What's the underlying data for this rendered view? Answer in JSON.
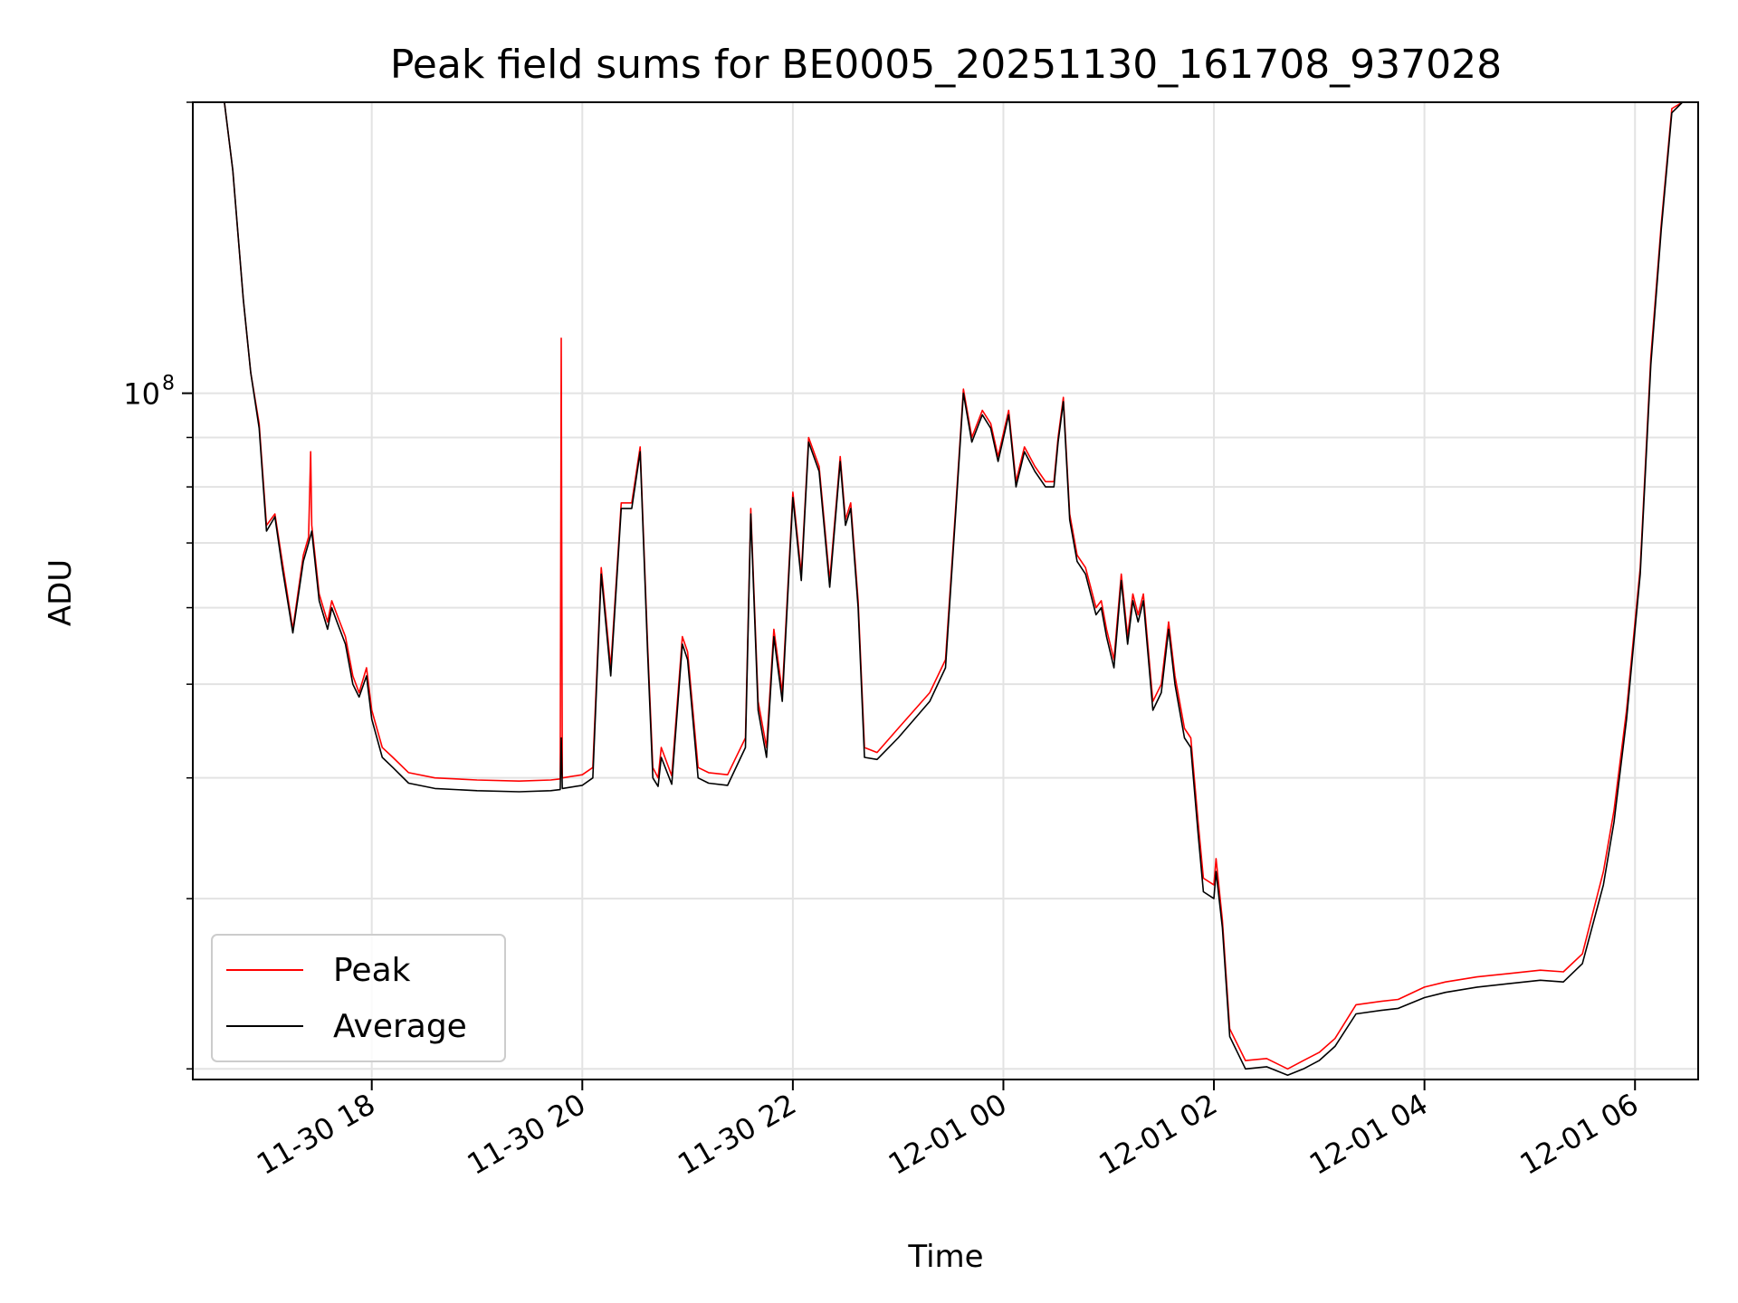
{
  "chart_data": {
    "type": "line",
    "title": "Peak field sums for BE0005_20251130_161708_937028",
    "xlabel": "Time",
    "ylabel": "ADU",
    "yscale": "log",
    "xlim_hours": [
      -1.7,
      12.6
    ],
    "ylim": [
      19500000,
      200000000
    ],
    "grid": true,
    "x_ticks": [
      {
        "hour": 0,
        "label": "11-30 18"
      },
      {
        "hour": 2,
        "label": "11-30 20"
      },
      {
        "hour": 4,
        "label": "11-30 22"
      },
      {
        "hour": 6,
        "label": "12-01 00"
      },
      {
        "hour": 8,
        "label": "12-01 02"
      },
      {
        "hour": 10,
        "label": "12-01 04"
      },
      {
        "hour": 12,
        "label": "12-01 06"
      }
    ],
    "y_major_ticks": [
      {
        "value": 100000000,
        "base": "10",
        "exp": "8"
      }
    ],
    "y_minor_ticks": [
      20000000,
      30000000,
      40000000,
      50000000,
      60000000,
      70000000,
      80000000,
      90000000,
      200000000
    ],
    "legend_position": "lower-left",
    "series": [
      {
        "name": "Peak",
        "color": "#ff0000",
        "points": [
          [
            -1.7,
            200000000
          ],
          [
            -1.4,
            200000000
          ],
          [
            -1.32,
            170000000
          ],
          [
            -1.22,
            125000000
          ],
          [
            -1.15,
            105000000
          ],
          [
            -1.07,
            93000000
          ],
          [
            -1.0,
            73000000
          ],
          [
            -0.92,
            75000000
          ],
          [
            -0.85,
            67000000
          ],
          [
            -0.75,
            57000000
          ],
          [
            -0.65,
            68000000
          ],
          [
            -0.6,
            71000000
          ],
          [
            -0.58,
            87000000
          ],
          [
            -0.57,
            73000000
          ],
          [
            -0.5,
            62000000
          ],
          [
            -0.42,
            58000000
          ],
          [
            -0.38,
            61000000
          ],
          [
            -0.33,
            59000000
          ],
          [
            -0.25,
            56000000
          ],
          [
            -0.18,
            51000000
          ],
          [
            -0.12,
            49000000
          ],
          [
            -0.05,
            52000000
          ],
          [
            0.0,
            47000000
          ],
          [
            0.1,
            43000000
          ],
          [
            0.2,
            42000000
          ],
          [
            0.35,
            40500000
          ],
          [
            0.6,
            40000000
          ],
          [
            1.0,
            39800000
          ],
          [
            1.4,
            39700000
          ],
          [
            1.7,
            39800000
          ],
          [
            1.79,
            39900000
          ],
          [
            1.8,
            114000000
          ],
          [
            1.81,
            40000000
          ],
          [
            2.0,
            40300000
          ],
          [
            2.1,
            41000000
          ],
          [
            2.18,
            66000000
          ],
          [
            2.27,
            52000000
          ],
          [
            2.37,
            77000000
          ],
          [
            2.47,
            77000000
          ],
          [
            2.55,
            88000000
          ],
          [
            2.62,
            55000000
          ],
          [
            2.67,
            41000000
          ],
          [
            2.72,
            40000000
          ],
          [
            2.75,
            43000000
          ],
          [
            2.85,
            40200000
          ],
          [
            2.95,
            56000000
          ],
          [
            3.0,
            54000000
          ],
          [
            3.1,
            41000000
          ],
          [
            3.2,
            40500000
          ],
          [
            3.38,
            40300000
          ],
          [
            3.55,
            44000000
          ],
          [
            3.6,
            76000000
          ],
          [
            3.67,
            48000000
          ],
          [
            3.75,
            43000000
          ],
          [
            3.82,
            57000000
          ],
          [
            3.9,
            49000000
          ],
          [
            4.0,
            79000000
          ],
          [
            4.08,
            65000000
          ],
          [
            4.15,
            90000000
          ],
          [
            4.25,
            84000000
          ],
          [
            4.35,
            64000000
          ],
          [
            4.45,
            86000000
          ],
          [
            4.5,
            74000000
          ],
          [
            4.55,
            77000000
          ],
          [
            4.62,
            61000000
          ],
          [
            4.68,
            43000000
          ],
          [
            4.8,
            42500000
          ],
          [
            5.0,
            45000000
          ],
          [
            5.3,
            49000000
          ],
          [
            5.45,
            53000000
          ],
          [
            5.55,
            77000000
          ],
          [
            5.62,
            101000000
          ],
          [
            5.7,
            90000000
          ],
          [
            5.8,
            96000000
          ],
          [
            5.88,
            93000000
          ],
          [
            5.95,
            86000000
          ],
          [
            6.05,
            96000000
          ],
          [
            6.12,
            81000000
          ],
          [
            6.2,
            88000000
          ],
          [
            6.3,
            84000000
          ],
          [
            6.4,
            81000000
          ],
          [
            6.48,
            81000000
          ],
          [
            6.52,
            90000000
          ],
          [
            6.57,
            99000000
          ],
          [
            6.63,
            75000000
          ],
          [
            6.7,
            68000000
          ],
          [
            6.78,
            66000000
          ],
          [
            6.88,
            60000000
          ],
          [
            6.93,
            61000000
          ],
          [
            6.98,
            57000000
          ],
          [
            7.05,
            53000000
          ],
          [
            7.12,
            65000000
          ],
          [
            7.18,
            56000000
          ],
          [
            7.23,
            62000000
          ],
          [
            7.28,
            59000000
          ],
          [
            7.33,
            62000000
          ],
          [
            7.42,
            48000000
          ],
          [
            7.5,
            50000000
          ],
          [
            7.57,
            58000000
          ],
          [
            7.63,
            51000000
          ],
          [
            7.72,
            45000000
          ],
          [
            7.78,
            44000000
          ],
          [
            7.85,
            36000000
          ],
          [
            7.9,
            31500000
          ],
          [
            8.0,
            31000000
          ],
          [
            8.02,
            33000000
          ],
          [
            8.08,
            28500000
          ],
          [
            8.15,
            22000000
          ],
          [
            8.3,
            20400000
          ],
          [
            8.5,
            20500000
          ],
          [
            8.7,
            20000000
          ],
          [
            8.85,
            20400000
          ],
          [
            9.0,
            20800000
          ],
          [
            9.15,
            21500000
          ],
          [
            9.35,
            23300000
          ],
          [
            9.6,
            23500000
          ],
          [
            9.75,
            23600000
          ],
          [
            10.0,
            24300000
          ],
          [
            10.2,
            24600000
          ],
          [
            10.5,
            24900000
          ],
          [
            10.8,
            25100000
          ],
          [
            11.1,
            25300000
          ],
          [
            11.32,
            25200000
          ],
          [
            11.5,
            26300000
          ],
          [
            11.7,
            32000000
          ],
          [
            11.8,
            37000000
          ],
          [
            11.92,
            47000000
          ],
          [
            12.05,
            66000000
          ],
          [
            12.15,
            109000000
          ],
          [
            12.25,
            150000000
          ],
          [
            12.35,
            197000000
          ],
          [
            12.45,
            200000000
          ],
          [
            12.6,
            200000000
          ]
        ]
      },
      {
        "name": "Average",
        "color": "#000000",
        "points": [
          [
            -1.7,
            200000000
          ],
          [
            -1.4,
            200000000
          ],
          [
            -1.32,
            170000000
          ],
          [
            -1.22,
            125000000
          ],
          [
            -1.15,
            105000000
          ],
          [
            -1.07,
            92000000
          ],
          [
            -1.0,
            72000000
          ],
          [
            -0.92,
            74500000
          ],
          [
            -0.85,
            66000000
          ],
          [
            -0.75,
            56500000
          ],
          [
            -0.65,
            67000000
          ],
          [
            -0.6,
            70000000
          ],
          [
            -0.57,
            72000000
          ],
          [
            -0.5,
            61000000
          ],
          [
            -0.42,
            57000000
          ],
          [
            -0.38,
            60000000
          ],
          [
            -0.33,
            58000000
          ],
          [
            -0.25,
            55000000
          ],
          [
            -0.18,
            50000000
          ],
          [
            -0.12,
            48500000
          ],
          [
            -0.05,
            51000000
          ],
          [
            0.0,
            46000000
          ],
          [
            0.1,
            42000000
          ],
          [
            0.2,
            41000000
          ],
          [
            0.35,
            39500000
          ],
          [
            0.6,
            39000000
          ],
          [
            1.0,
            38800000
          ],
          [
            1.4,
            38700000
          ],
          [
            1.7,
            38800000
          ],
          [
            1.79,
            38900000
          ],
          [
            1.8,
            44000000
          ],
          [
            1.81,
            39000000
          ],
          [
            2.0,
            39300000
          ],
          [
            2.1,
            40000000
          ],
          [
            2.18,
            65000000
          ],
          [
            2.27,
            51000000
          ],
          [
            2.37,
            76000000
          ],
          [
            2.47,
            76000000
          ],
          [
            2.55,
            87000000
          ],
          [
            2.62,
            54000000
          ],
          [
            2.67,
            40000000
          ],
          [
            2.72,
            39200000
          ],
          [
            2.75,
            42000000
          ],
          [
            2.85,
            39400000
          ],
          [
            2.95,
            55000000
          ],
          [
            3.0,
            53000000
          ],
          [
            3.1,
            40000000
          ],
          [
            3.2,
            39500000
          ],
          [
            3.38,
            39300000
          ],
          [
            3.55,
            43000000
          ],
          [
            3.6,
            75000000
          ],
          [
            3.67,
            47000000
          ],
          [
            3.75,
            42000000
          ],
          [
            3.82,
            56000000
          ],
          [
            3.9,
            48000000
          ],
          [
            4.0,
            78000000
          ],
          [
            4.08,
            64000000
          ],
          [
            4.15,
            89000000
          ],
          [
            4.25,
            83000000
          ],
          [
            4.35,
            63000000
          ],
          [
            4.45,
            85000000
          ],
          [
            4.5,
            73000000
          ],
          [
            4.55,
            76000000
          ],
          [
            4.62,
            60000000
          ],
          [
            4.68,
            42000000
          ],
          [
            4.8,
            41800000
          ],
          [
            5.0,
            44000000
          ],
          [
            5.3,
            48000000
          ],
          [
            5.45,
            52000000
          ],
          [
            5.55,
            76000000
          ],
          [
            5.62,
            100000000
          ],
          [
            5.7,
            89000000
          ],
          [
            5.8,
            95000000
          ],
          [
            5.88,
            92000000
          ],
          [
            5.95,
            85000000
          ],
          [
            6.05,
            95000000
          ],
          [
            6.12,
            80000000
          ],
          [
            6.2,
            87000000
          ],
          [
            6.3,
            83000000
          ],
          [
            6.4,
            80000000
          ],
          [
            6.48,
            80000000
          ],
          [
            6.52,
            89000000
          ],
          [
            6.57,
            98000000
          ],
          [
            6.63,
            74000000
          ],
          [
            6.7,
            67000000
          ],
          [
            6.78,
            65000000
          ],
          [
            6.88,
            59000000
          ],
          [
            6.93,
            60000000
          ],
          [
            6.98,
            56000000
          ],
          [
            7.05,
            52000000
          ],
          [
            7.12,
            64000000
          ],
          [
            7.18,
            55000000
          ],
          [
            7.23,
            61000000
          ],
          [
            7.28,
            58000000
          ],
          [
            7.33,
            61000000
          ],
          [
            7.42,
            47000000
          ],
          [
            7.5,
            49000000
          ],
          [
            7.57,
            57000000
          ],
          [
            7.63,
            50000000
          ],
          [
            7.72,
            44000000
          ],
          [
            7.78,
            43000000
          ],
          [
            7.85,
            35000000
          ],
          [
            7.9,
            30500000
          ],
          [
            8.0,
            30000000
          ],
          [
            8.02,
            32000000
          ],
          [
            8.08,
            28000000
          ],
          [
            8.15,
            21600000
          ],
          [
            8.3,
            20000000
          ],
          [
            8.5,
            20100000
          ],
          [
            8.7,
            19700000
          ],
          [
            8.85,
            20000000
          ],
          [
            9.0,
            20400000
          ],
          [
            9.15,
            21100000
          ],
          [
            9.35,
            22800000
          ],
          [
            9.6,
            23000000
          ],
          [
            9.75,
            23100000
          ],
          [
            10.0,
            23700000
          ],
          [
            10.2,
            24000000
          ],
          [
            10.5,
            24300000
          ],
          [
            10.8,
            24500000
          ],
          [
            11.1,
            24700000
          ],
          [
            11.32,
            24600000
          ],
          [
            11.5,
            25700000
          ],
          [
            11.7,
            31000000
          ],
          [
            11.8,
            36000000
          ],
          [
            11.92,
            46000000
          ],
          [
            12.05,
            65000000
          ],
          [
            12.15,
            107000000
          ],
          [
            12.25,
            148000000
          ],
          [
            12.35,
            195000000
          ],
          [
            12.45,
            200000000
          ],
          [
            12.6,
            200000000
          ]
        ]
      }
    ]
  }
}
